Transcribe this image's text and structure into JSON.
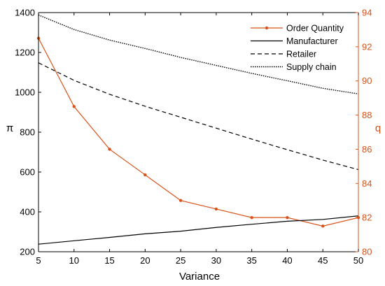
{
  "chart_data": {
    "type": "line",
    "title": "",
    "xlabel": "Variance",
    "ylabel_left": "π",
    "ylabel_right": "q",
    "x": [
      5,
      10,
      15,
      20,
      25,
      30,
      35,
      40,
      45,
      50
    ],
    "xlim": [
      5,
      50
    ],
    "xticks": [
      5,
      10,
      15,
      20,
      25,
      30,
      35,
      40,
      45,
      50
    ],
    "ylim_left": [
      200,
      1400
    ],
    "yticks_left": [
      200,
      400,
      600,
      800,
      1000,
      1200,
      1400
    ],
    "ylim_right": [
      80,
      94
    ],
    "yticks_right": [
      80,
      82,
      84,
      86,
      88,
      90,
      92,
      94
    ],
    "grid": false,
    "legend_position": "top-right",
    "colors": {
      "right_axis": "#D95319",
      "left_axis": "#000000"
    },
    "series": [
      {
        "name": "Order Quantity",
        "axis": "right",
        "style": "solid-marker",
        "color": "#D95319",
        "values": [
          92.5,
          88.5,
          86.0,
          84.5,
          83.0,
          82.5,
          82.0,
          82.0,
          81.5,
          82.0
        ]
      },
      {
        "name": "Manufacturer",
        "axis": "left",
        "style": "solid",
        "color": "#000000",
        "values": [
          238,
          255,
          272,
          290,
          303,
          322,
          338,
          353,
          362,
          380
        ]
      },
      {
        "name": "Retailer",
        "axis": "left",
        "style": "dashed",
        "color": "#000000",
        "values": [
          1148,
          1060,
          990,
          930,
          875,
          820,
          765,
          712,
          660,
          612
        ]
      },
      {
        "name": "Supply chain",
        "axis": "left",
        "style": "dotted",
        "color": "#000000",
        "values": [
          1388,
          1315,
          1262,
          1220,
          1175,
          1135,
          1095,
          1058,
          1020,
          992
        ]
      }
    ]
  }
}
